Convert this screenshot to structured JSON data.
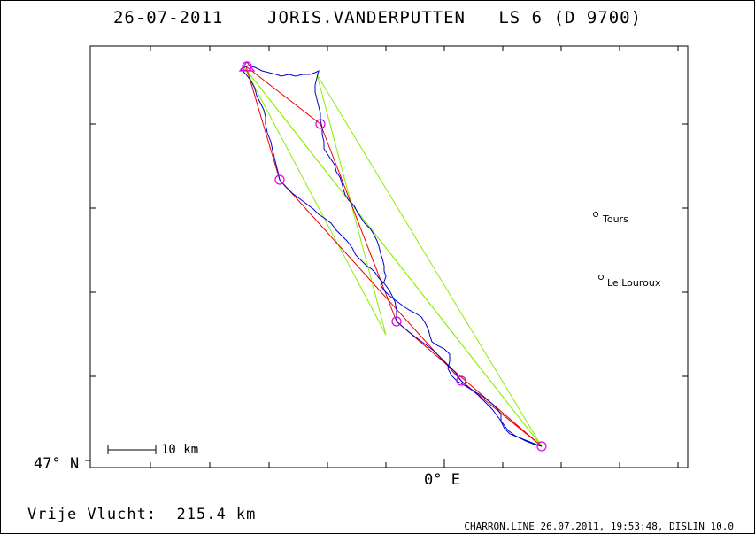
{
  "header": {
    "title": "26-07-2011    JORIS.VANDERPUTTEN   LS 6 (D 9700)"
  },
  "axes": {
    "latitude_label": "47° N",
    "longitude_label": "0° E"
  },
  "scale_bar": {
    "label": "10 km"
  },
  "places": [
    {
      "name": "Tours"
    },
    {
      "name": "Le Louroux"
    }
  ],
  "summary": {
    "distance_text": "Vrije Vlucht:  215.4 km"
  },
  "footer": {
    "text": "CHARRON.LINE 26.07.2011, 19:53:48, DISLIN 10.0"
  },
  "colors": {
    "track": "#0000cc",
    "task_legs": "#ee0000",
    "triangles": "#88ee00",
    "turnpoints": "#dd00dd",
    "frame": "#000000"
  },
  "turnpoint_count": 7
}
